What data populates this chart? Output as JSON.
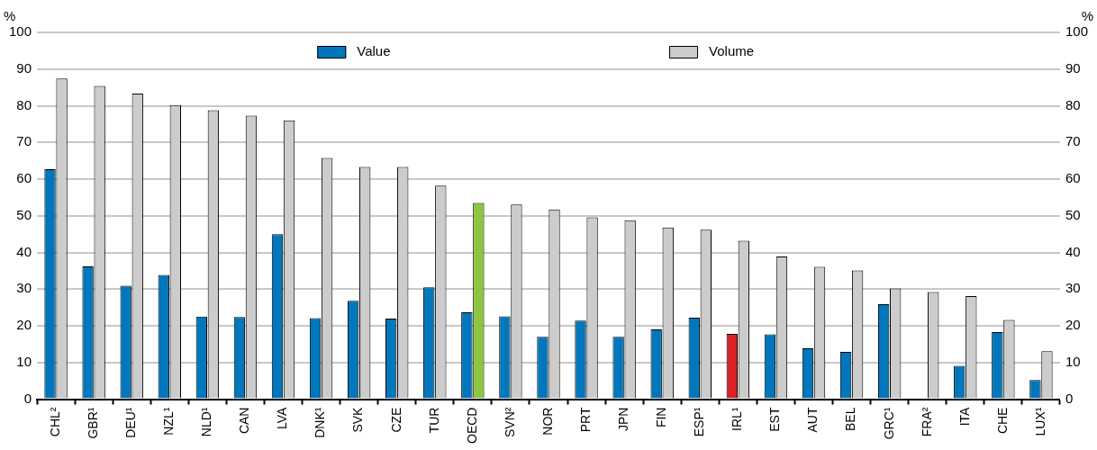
{
  "chart_data": {
    "type": "bar",
    "ylabel": "%",
    "y2label": "%",
    "categories": [
      "CHL²",
      "GBR¹",
      "DEU¹",
      "NZL¹",
      "NLD¹",
      "CAN",
      "LVA",
      "DNK¹",
      "SVK",
      "CZE",
      "TUR",
      "OECD",
      "SVN²",
      "NOR",
      "PRT",
      "JPN",
      "FIN",
      "ESP¹",
      "IRL¹",
      "EST",
      "AUT",
      "BEL",
      "GRC¹",
      "FRA²",
      "ITA",
      "CHE",
      "LUX¹"
    ],
    "series": [
      {
        "name": "Value",
        "color": "#0077bd",
        "colors": [
          "#0077bd",
          "#0077bd",
          "#0077bd",
          "#0077bd",
          "#0077bd",
          "#0077bd",
          "#0077bd",
          "#0077bd",
          "#0077bd",
          "#0077bd",
          "#0077bd",
          "#0077bd",
          "#0077bd",
          "#0077bd",
          "#0077bd",
          "#0077bd",
          "#0077bd",
          "#0077bd",
          "#da2128",
          "#0077bd",
          "#0077bd",
          "#0077bd",
          "#0077bd",
          "#0077bd",
          "#0077bd",
          "#0077bd",
          "#0077bd"
        ],
        "values": [
          62.7,
          36.2,
          30.9,
          33.9,
          22.5,
          22.4,
          45,
          22.1,
          26.8,
          22,
          30.5,
          23.7,
          22.6,
          17,
          21.4,
          17,
          19,
          22.2,
          17.8,
          17.7,
          13.9,
          12.9,
          25.9,
          null,
          9.1,
          18.3,
          5.2
        ]
      },
      {
        "name": "Volume",
        "color": "#cccccc",
        "colors": [
          "#cccccc",
          "#cccccc",
          "#cccccc",
          "#cccccc",
          "#cccccc",
          "#cccccc",
          "#cccccc",
          "#cccccc",
          "#cccccc",
          "#cccccc",
          "#cccccc",
          "#8dc63f",
          "#cccccc",
          "#cccccc",
          "#cccccc",
          "#cccccc",
          "#cccccc",
          "#cccccc",
          "#cccccc",
          "#cccccc",
          "#cccccc",
          "#cccccc",
          "#cccccc",
          "#cccccc",
          "#cccccc",
          "#cccccc",
          "#cccccc"
        ],
        "values": [
          87.4,
          85.4,
          83.3,
          80.2,
          78.8,
          77.3,
          76,
          65.8,
          63.3,
          63.3,
          58.2,
          53.5,
          53.1,
          51.7,
          49.6,
          48.8,
          46.8,
          46.2,
          43.2,
          38.9,
          36.1,
          35.1,
          30.2,
          29.2,
          28.1,
          21.6,
          13.1
        ]
      }
    ],
    "ylim": [
      0,
      100
    ],
    "yticks": [
      0,
      10,
      20,
      30,
      40,
      50,
      60,
      70,
      80,
      90,
      100
    ],
    "y2lim": [
      0,
      100
    ],
    "y2ticks": [
      0,
      10,
      20,
      30,
      40,
      50,
      60,
      70,
      80,
      90,
      100
    ],
    "grid": "y",
    "legend": "top"
  }
}
